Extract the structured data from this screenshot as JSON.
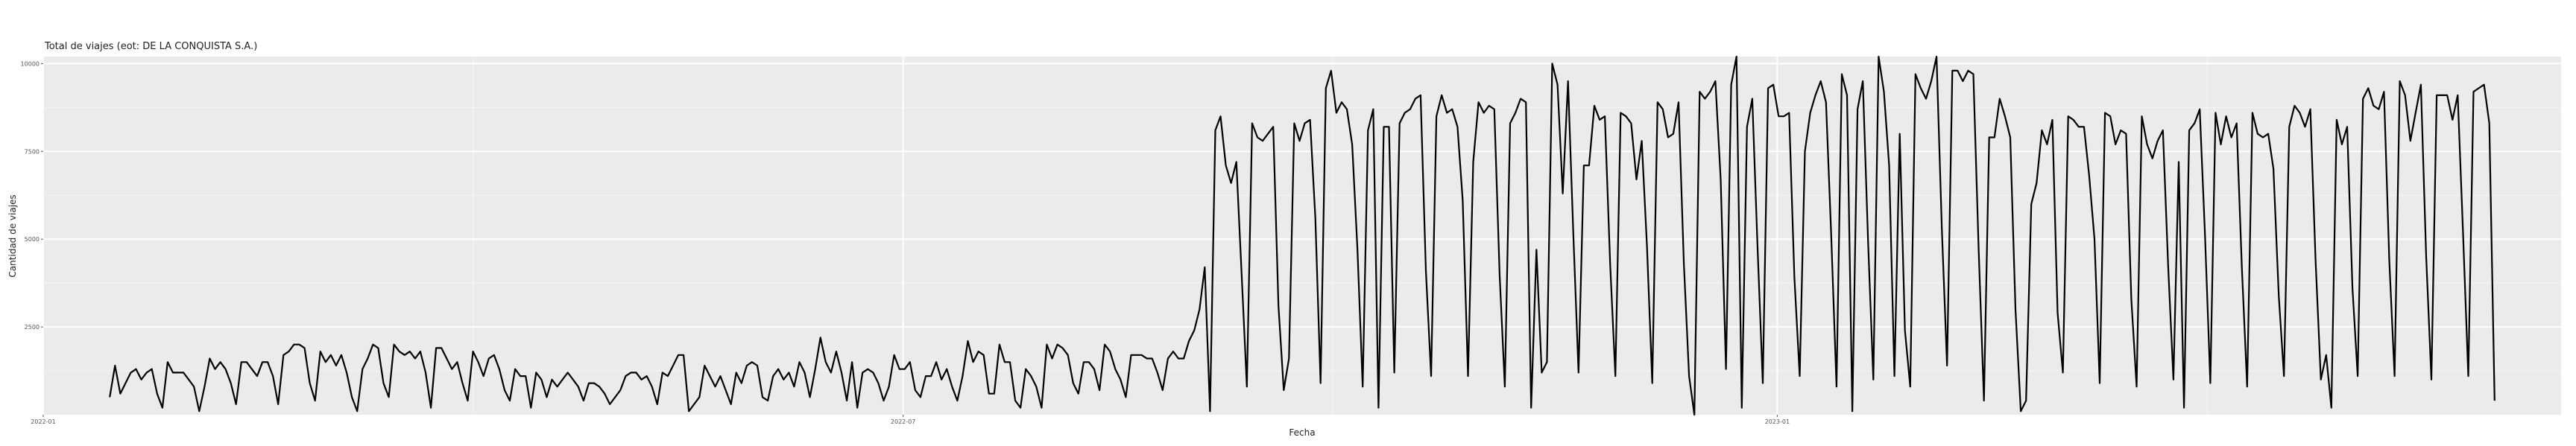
{
  "chart_data": {
    "type": "line",
    "title": "Total de viajes (eot: DE LA CONQUISTA S.A.)",
    "xlabel": "Fecha",
    "ylabel": "Cantidad de viajes",
    "x_range": [
      "2022-01-01",
      "2023-06-15"
    ],
    "ylim": [
      0,
      10200
    ],
    "y_ticks": [
      2500,
      5000,
      7500,
      10000
    ],
    "y_tick_labels": [
      "2500",
      "5000",
      "7500",
      "10000"
    ],
    "x_ticks": [
      "2022-01-01",
      "2022-07-01",
      "2023-01-01"
    ],
    "x_tick_labels": [
      "2022-01",
      "2022-07",
      "2023-01"
    ],
    "grid": true,
    "panel_color": "#ebebeb",
    "line_color": "#000000",
    "series": [
      {
        "x_start": "2022-01-15",
        "x_end": "2023-06-01",
        "values": [
          500,
          1400,
          600,
          900,
          1200,
          1300,
          1000,
          1200,
          1300,
          600,
          200,
          1500,
          1200,
          1200,
          1200,
          1000,
          800,
          100,
          800,
          1600,
          1300,
          1500,
          1300,
          900,
          300,
          1500,
          1500,
          1300,
          1100,
          1500,
          1500,
          1100,
          300,
          1700,
          1800,
          2000,
          2000,
          1900,
          900,
          400,
          1800,
          1500,
          1700,
          1400,
          1700,
          1200,
          500,
          100,
          1300,
          1600,
          2000,
          1900,
          900,
          500,
          2000,
          1800,
          1700,
          1800,
          1600,
          1800,
          1200,
          200,
          1900,
          1900,
          1600,
          1300,
          1500,
          900,
          400,
          1800,
          1500,
          1100,
          1600,
          1700,
          1300,
          700,
          400,
          1300,
          1100,
          1100,
          200,
          1200,
          1000,
          500,
          1000,
          800,
          1000,
          1200,
          1000,
          800,
          400,
          900,
          900,
          800,
          600,
          300,
          500,
          700,
          1100,
          1200,
          1200,
          1000,
          1100,
          800,
          300,
          1200,
          1100,
          1400,
          1700,
          1700,
          100,
          300,
          500,
          1400,
          1100,
          800,
          1100,
          700,
          300,
          1200,
          900,
          1400,
          1500,
          1400,
          500,
          400,
          1100,
          1300,
          1000,
          1200,
          800,
          1500,
          1200,
          500,
          1300,
          2200,
          1500,
          1200,
          1800,
          1200,
          400,
          1500,
          200,
          1200,
          1300,
          1200,
          900,
          400,
          800,
          1700,
          1300,
          1300,
          1500,
          700,
          500,
          1100,
          1100,
          1500,
          1000,
          1300,
          800,
          400,
          1100,
          2100,
          1500,
          1800,
          1700,
          600,
          600,
          2000,
          1500,
          1500,
          400,
          200,
          1300,
          1100,
          800,
          200,
          2000,
          1600,
          2000,
          1900,
          1700,
          900,
          600,
          1500,
          1500,
          1300,
          700,
          2000,
          1800,
          1300,
          1000,
          500,
          1700,
          1700,
          1700,
          1600,
          1600,
          1200,
          700,
          1600,
          1800,
          1600,
          1600,
          2100,
          2400,
          3000,
          4200,
          100,
          8100,
          8500,
          7100,
          6600,
          7200,
          4000,
          800,
          8300,
          7900,
          7800,
          8000,
          8200,
          3100,
          700,
          1600,
          8300,
          7800,
          8300,
          8400,
          5600,
          900,
          9300,
          9800,
          8600,
          8900,
          8700,
          7700,
          4700,
          800,
          8100,
          8700,
          200,
          8200,
          8200,
          1200,
          8300,
          8600,
          8700,
          9000,
          9100,
          4100,
          1100,
          8500,
          9100,
          8600,
          8700,
          8200,
          6100,
          1100,
          7200,
          8900,
          8600,
          8800,
          8700,
          4000,
          800,
          8300,
          8600,
          9000,
          8900,
          200,
          4700,
          1200,
          1500,
          10000,
          9400,
          6300,
          9500,
          5200,
          1200,
          7100,
          7100,
          8800,
          8400,
          8500,
          4300,
          1100,
          8600,
          8500,
          8300,
          6700,
          7800,
          4800,
          900,
          8900,
          8700,
          7900,
          8000,
          8900,
          4300,
          1100,
          0,
          9200,
          9000,
          9200,
          9500,
          6700,
          1300,
          9400,
          10200,
          200,
          8200,
          9000,
          4800,
          900,
          9300,
          9400,
          8500,
          8500,
          8600,
          3900,
          1100,
          7500,
          8600,
          9100,
          9500,
          8900,
          5100,
          800,
          9700,
          9100,
          100,
          8700,
          9500,
          4900,
          1000,
          10200,
          9200,
          7100,
          1100,
          8000,
          2400,
          800,
          9700,
          9300,
          9000,
          9500,
          10200,
          5300,
          1400,
          9800,
          9800,
          9500,
          9800,
          9700,
          4700,
          400,
          7900,
          7900,
          9000,
          8500,
          7900,
          3000,
          100,
          400,
          6000,
          6600,
          8100,
          7700,
          8400,
          2900,
          1200,
          8500,
          8400,
          8200,
          8200,
          6800,
          5000,
          900,
          8600,
          8500,
          7700,
          8100,
          8000,
          3300,
          800,
          8500,
          7700,
          7300,
          7800,
          8100,
          4200,
          1000,
          7200,
          200,
          8100,
          8300,
          8700,
          5100,
          900,
          8600,
          7700,
          8500,
          7900,
          8300,
          4200,
          800,
          8600,
          8000,
          7900,
          8000,
          7000,
          3400,
          1100,
          8200,
          8800,
          8600,
          8200,
          8700,
          4400,
          1000,
          1700,
          200,
          8400,
          7700,
          8200,
          3600,
          1100,
          9000,
          9300,
          8800,
          8700,
          9200,
          4400,
          1100,
          9500,
          9100,
          7800,
          8600,
          9400,
          4500,
          1000,
          9100,
          9100,
          9100,
          8400,
          9100,
          5200,
          1100,
          9200,
          9300,
          9400,
          8300,
          400
        ]
      }
    ]
  }
}
